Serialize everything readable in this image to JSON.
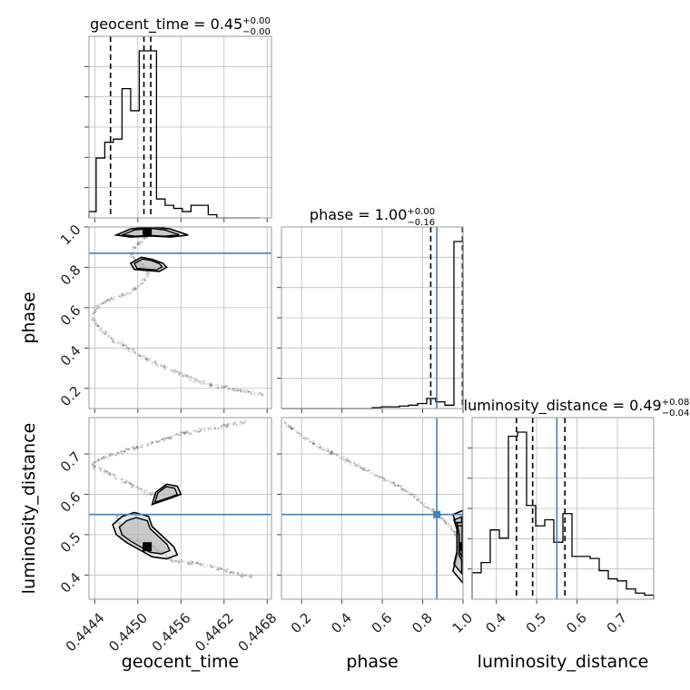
{
  "chart_data": {
    "type": "corner",
    "parameters": [
      "geocent_time",
      "phase",
      "luminosity_distance"
    ],
    "truths": {
      "phase": 0.87,
      "luminosity_distance": 0.55
    },
    "titles": [
      {
        "param": "geocent_time",
        "text": "geocent_time = 0.45",
        "plus": "+0.00",
        "minus": "−0.00"
      },
      {
        "param": "phase",
        "text": "phase = 1.00",
        "plus": "+0.00",
        "minus": "−0.16"
      },
      {
        "param": "luminosity_distance",
        "text": "luminosity_distance = 0.49",
        "plus": "+0.08",
        "minus": "−0.04"
      }
    ],
    "axes": {
      "geocent_time": {
        "range": [
          0.44432,
          0.44686
        ],
        "ticks": [
          "0.4444",
          "0.4450",
          "0.4456",
          "0.4462",
          "0.4468"
        ],
        "tick_values": [
          0.4444,
          0.445,
          0.4456,
          0.4462,
          0.4468
        ],
        "label": "geocent_time"
      },
      "phase": {
        "range": [
          0.1,
          1.0
        ],
        "ticks": [
          "0.2",
          "0.4",
          "0.6",
          "0.8",
          "1.0"
        ],
        "tick_values": [
          0.2,
          0.4,
          0.6,
          0.8,
          1.0
        ],
        "label": "phase",
        "y_ticks": [
          "0.2",
          "0.4",
          "0.6",
          "0.8",
          "1.0"
        ]
      },
      "luminosity_distance": {
        "range": [
          0.34,
          0.79
        ],
        "ticks": [
          "0.4",
          "0.5",
          "0.6",
          "0.7"
        ],
        "tick_values": [
          0.4,
          0.5,
          0.6,
          0.7
        ],
        "label": "luminosity_distance",
        "y_ticks": [
          "0.4",
          "0.5",
          "0.6",
          "0.7"
        ]
      }
    },
    "histograms": {
      "geocent_time": {
        "bin_edges": [
          0.4443,
          0.44442,
          0.44454,
          0.44466,
          0.44478,
          0.4449,
          0.44502,
          0.44514,
          0.44526,
          0.44538,
          0.4455,
          0.44562,
          0.44574,
          0.44586,
          0.44598,
          0.4461,
          0.44622,
          0.44634,
          0.44646,
          0.44658,
          0.4467
        ],
        "counts": [
          2,
          19,
          24,
          25,
          41,
          34,
          53,
          53,
          6,
          4,
          3,
          2,
          4,
          4,
          1,
          0,
          0,
          0,
          0,
          0
        ],
        "quantiles": [
          0.44462,
          0.445085,
          0.44518
        ]
      },
      "phase": {
        "bin_edges": [
          0.1,
          0.145,
          0.19,
          0.235,
          0.28,
          0.325,
          0.37,
          0.415,
          0.46,
          0.505,
          0.55,
          0.595,
          0.64,
          0.685,
          0.73,
          0.775,
          0.82,
          0.865,
          0.91,
          0.955,
          1.0
        ],
        "counts": [
          0,
          0,
          0,
          0,
          0,
          0,
          0,
          0,
          0,
          0,
          0.5,
          1,
          1,
          1.5,
          2,
          3,
          6,
          4,
          2,
          100
        ],
        "quantiles": [
          0.84,
          1.0,
          1.0
        ]
      },
      "luminosity_distance": {
        "bin_edges": [
          0.34,
          0.3625,
          0.385,
          0.4075,
          0.43,
          0.4525,
          0.475,
          0.4975,
          0.52,
          0.5425,
          0.565,
          0.5875,
          0.61,
          0.6325,
          0.655,
          0.6775,
          0.7,
          0.7225,
          0.745,
          0.7675,
          0.79
        ],
        "counts": [
          13,
          18,
          34,
          30,
          80,
          82,
          46,
          36,
          39,
          28,
          42,
          21,
          21,
          20,
          14,
          10,
          9,
          5,
          3,
          2
        ],
        "quantiles": [
          0.45,
          0.49,
          0.57
        ]
      }
    },
    "scatter_2d": [
      {
        "x": "geocent_time",
        "y": "phase",
        "path": [
          [
            0.44437,
            0.56
          ],
          [
            0.4444,
            0.53
          ],
          [
            0.44447,
            0.5
          ],
          [
            0.44455,
            0.47
          ],
          [
            0.44465,
            0.44
          ],
          [
            0.4448,
            0.41
          ],
          [
            0.445,
            0.37
          ],
          [
            0.4452,
            0.33
          ],
          [
            0.4454,
            0.3
          ],
          [
            0.4456,
            0.27
          ],
          [
            0.4458,
            0.24
          ],
          [
            0.4461,
            0.21
          ],
          [
            0.44645,
            0.19
          ],
          [
            0.44675,
            0.17
          ]
        ],
        "path2": [
          [
            0.44437,
            0.56
          ],
          [
            0.44442,
            0.6
          ],
          [
            0.44455,
            0.63
          ],
          [
            0.44475,
            0.66
          ],
          [
            0.44492,
            0.68
          ],
          [
            0.44505,
            0.72
          ],
          [
            0.44512,
            0.75
          ],
          [
            0.44515,
            0.78
          ],
          [
            0.4451,
            0.8
          ],
          [
            0.445,
            0.83
          ],
          [
            0.4449,
            0.86
          ],
          [
            0.44495,
            0.9
          ],
          [
            0.4451,
            0.94
          ],
          [
            0.4452,
            0.98
          ]
        ],
        "mode": [
          0.44513,
          0.98
        ],
        "contours": [
          [
            [
              0.4449,
              0.82
            ],
            [
              0.44505,
              0.85
            ],
            [
              0.4452,
              0.84
            ],
            [
              0.44535,
              0.82
            ],
            [
              0.4454,
              0.8
            ],
            [
              0.4453,
              0.78
            ],
            [
              0.4451,
              0.785
            ],
            [
              0.44495,
              0.79
            ],
            [
              0.4449,
              0.82
            ]
          ],
          [
            [
              0.4447,
              0.96
            ],
            [
              0.4449,
              0.99
            ],
            [
              0.4452,
              1.0
            ],
            [
              0.44545,
              0.99
            ],
            [
              0.4457,
              0.96
            ],
            [
              0.44545,
              0.95
            ],
            [
              0.4452,
              0.955
            ],
            [
              0.4449,
              0.95
            ],
            [
              0.4447,
              0.96
            ]
          ]
        ]
      },
      {
        "x": "geocent_time",
        "y": "luminosity_distance",
        "path": [
          [
            0.44436,
            0.675
          ],
          [
            0.44445,
            0.665
          ],
          [
            0.44458,
            0.655
          ],
          [
            0.44472,
            0.64
          ],
          [
            0.44488,
            0.625
          ],
          [
            0.44505,
            0.61
          ],
          [
            0.4452,
            0.6
          ],
          [
            0.4453,
            0.59
          ]
        ],
        "path2": [
          [
            0.44436,
            0.675
          ],
          [
            0.4445,
            0.69
          ],
          [
            0.4447,
            0.7
          ],
          [
            0.44495,
            0.715
          ],
          [
            0.44525,
            0.73
          ],
          [
            0.4456,
            0.75
          ],
          [
            0.44605,
            0.765
          ],
          [
            0.4465,
            0.78
          ]
        ],
        "path3": [
          [
            0.4447,
            0.55
          ],
          [
            0.44475,
            0.52
          ],
          [
            0.44478,
            0.5
          ],
          [
            0.44485,
            0.49
          ],
          [
            0.445,
            0.485
          ],
          [
            0.4452,
            0.475
          ],
          [
            0.44535,
            0.45
          ],
          [
            0.4455,
            0.435
          ],
          [
            0.44575,
            0.43
          ],
          [
            0.44605,
            0.42
          ],
          [
            0.44625,
            0.41
          ],
          [
            0.44645,
            0.4
          ],
          [
            0.4466,
            0.395
          ]
        ],
        "mode": [
          0.44513,
          0.47
        ],
        "contours": [
          [
            [
              0.44465,
              0.525
            ],
            [
              0.44478,
              0.545
            ],
            [
              0.44495,
              0.555
            ],
            [
              0.44515,
              0.545
            ],
            [
              0.4452,
              0.52
            ],
            [
              0.44535,
              0.495
            ],
            [
              0.4455,
              0.47
            ],
            [
              0.44555,
              0.45
            ],
            [
              0.4454,
              0.44
            ],
            [
              0.4452,
              0.445
            ],
            [
              0.44505,
              0.46
            ],
            [
              0.44485,
              0.48
            ],
            [
              0.4447,
              0.5
            ],
            [
              0.44465,
              0.525
            ]
          ],
          [
            [
              0.4452,
              0.575
            ],
            [
              0.44545,
              0.59
            ],
            [
              0.4456,
              0.6
            ],
            [
              0.44555,
              0.62
            ],
            [
              0.4454,
              0.625
            ],
            [
              0.44525,
              0.605
            ],
            [
              0.4452,
              0.575
            ]
          ]
        ]
      },
      {
        "x": "phase",
        "y": "luminosity_distance",
        "path": [
          [
            0.11,
            0.78
          ],
          [
            0.2,
            0.745
          ],
          [
            0.3,
            0.715
          ],
          [
            0.4,
            0.69
          ],
          [
            0.5,
            0.665
          ],
          [
            0.6,
            0.64
          ],
          [
            0.68,
            0.62
          ],
          [
            0.74,
            0.6
          ],
          [
            0.78,
            0.585
          ],
          [
            0.82,
            0.57
          ],
          [
            0.86,
            0.555
          ],
          [
            0.9,
            0.54
          ],
          [
            0.95,
            0.51
          ],
          [
            1.0,
            0.48
          ]
        ],
        "mode": [
          1.0,
          0.47
        ],
        "contours": [
          [
            [
              0.95,
              0.55
            ],
            [
              0.97,
              0.52
            ],
            [
              0.97,
              0.45
            ],
            [
              0.95,
              0.41
            ],
            [
              1.0,
              0.38
            ],
            [
              1.0,
              0.56
            ],
            [
              0.95,
              0.55
            ]
          ],
          [
            [
              0.97,
              0.53
            ],
            [
              0.98,
              0.5
            ],
            [
              0.98,
              0.45
            ],
            [
              1.0,
              0.43
            ],
            [
              1.0,
              0.53
            ],
            [
              0.97,
              0.53
            ]
          ]
        ]
      }
    ]
  }
}
